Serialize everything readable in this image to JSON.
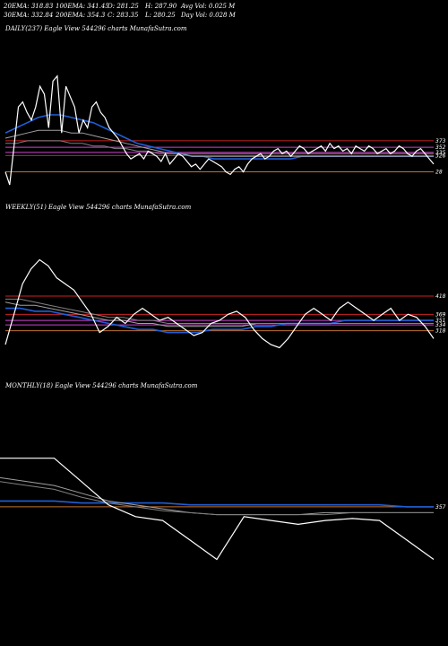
{
  "header": {
    "row1": [
      "20EMA: 318.83",
      "100EMA: 341.45",
      "O: 281.25",
      "H: 287.90",
      "Avg Vol: 0.025 M"
    ],
    "row2": [
      "30EMA: 332.84",
      "200EMA: 354.3",
      "C: 283.35",
      "L: 280.25",
      "Day Vol: 0.028 M"
    ]
  },
  "colors": {
    "background": "#000000",
    "price": "#ffffff",
    "ema_blue": "#1f5fd8",
    "level_red": "#cc2222",
    "level_magenta": "#d040d0",
    "level_orange": "#c07030",
    "ema_gray": "#a0a0a0"
  },
  "chart_data": [
    {
      "type": "line",
      "title": "DAILY(237) Eagle  View  544296  charts MunafaSutra.com",
      "price_series": [
        5,
        0,
        15,
        30,
        32,
        28,
        25,
        30,
        38,
        35,
        22,
        40,
        42,
        20,
        38,
        34,
        30,
        20,
        25,
        22,
        30,
        32,
        28,
        26,
        22,
        20,
        18,
        15,
        12,
        10,
        11,
        12,
        10,
        13,
        12,
        11,
        9,
        12,
        8,
        10,
        12,
        11,
        9,
        7,
        8,
        6,
        8,
        10,
        9,
        8,
        7,
        5,
        4,
        6,
        7,
        5,
        8,
        10,
        11,
        12,
        10,
        11,
        13,
        14,
        12,
        13,
        11,
        13,
        15,
        14,
        12,
        13,
        14,
        15,
        13,
        16,
        14,
        15,
        13,
        14,
        12,
        15,
        14,
        13,
        15,
        14,
        12,
        13,
        14,
        12,
        13,
        15,
        14,
        12,
        11,
        13,
        14,
        12,
        10,
        8
      ],
      "ema_series": [
        {
          "color": "#1f5fd8",
          "values": [
            20,
            22,
            24,
            26,
            27,
            27,
            26,
            25,
            24,
            22,
            20,
            18,
            16,
            15,
            14,
            13,
            12,
            11,
            11,
            10,
            10,
            10,
            10,
            10,
            10,
            10,
            10,
            11,
            11,
            11,
            11,
            11,
            11,
            11,
            11,
            11,
            11,
            11,
            11,
            11
          ]
        },
        {
          "color": "#a0a0a0",
          "values": [
            18,
            19,
            20,
            21,
            21,
            21,
            20,
            20,
            19,
            18,
            17,
            16,
            15,
            14,
            13,
            12,
            12,
            11,
            11,
            11,
            11,
            11,
            11,
            11,
            11,
            11,
            11,
            11,
            11,
            11,
            11,
            11,
            11,
            11,
            11,
            11,
            11,
            11,
            11,
            11
          ]
        },
        {
          "color": "#808080",
          "values": [
            16,
            16,
            17,
            17,
            17,
            17,
            16,
            16,
            15,
            15,
            14,
            14,
            13,
            13,
            12,
            12,
            12,
            12,
            12,
            12,
            12,
            12,
            12,
            12,
            12,
            12,
            12,
            12,
            12,
            12,
            12,
            12,
            12,
            12,
            12,
            12,
            12,
            12,
            12,
            12
          ]
        }
      ],
      "levels": [
        {
          "label": "373",
          "value": 17,
          "color": "#cc2222"
        },
        {
          "label": "352",
          "value": 14.5,
          "color": "#d040d0"
        },
        {
          "label": "335",
          "value": 12.5,
          "color": "#d040d0"
        },
        {
          "label": "326",
          "value": 11.3,
          "color": "#cc2222"
        },
        {
          "label": "28",
          "value": 5,
          "color": "#c07030"
        }
      ],
      "ylim": [
        0,
        45
      ]
    },
    {
      "type": "line",
      "title": "WEEKLY(51) Eagle  View  544296  charts MunafaSutra.com",
      "price_series": [
        0,
        10,
        20,
        25,
        28,
        26,
        22,
        20,
        18,
        14,
        10,
        4,
        6,
        9,
        7,
        10,
        12,
        10,
        8,
        9,
        7,
        5,
        3,
        4,
        7,
        8,
        10,
        11,
        9,
        5,
        2,
        0,
        -1,
        2,
        6,
        10,
        12,
        10,
        8,
        12,
        14,
        12,
        10,
        8,
        10,
        12,
        8,
        10,
        9,
        6,
        2
      ],
      "ema_series": [
        {
          "color": "#1f5fd8",
          "values": [
            12,
            12,
            11,
            11,
            10,
            9,
            8,
            7,
            6,
            5,
            5,
            4,
            4,
            4,
            5,
            5,
            5,
            6,
            6,
            7,
            7,
            7,
            7,
            8,
            8,
            8,
            8,
            8,
            8,
            8
          ]
        },
        {
          "color": "#a0a0a0",
          "values": [
            14,
            13,
            13,
            12,
            11,
            10,
            9,
            8,
            8,
            7,
            7,
            6,
            6,
            6,
            6,
            6,
            6,
            7,
            7,
            7,
            7,
            7,
            7,
            7,
            7,
            7,
            7,
            7,
            7,
            7
          ]
        },
        {
          "color": "#808080",
          "values": [
            15,
            15,
            14,
            13,
            12,
            11,
            10,
            9,
            9,
            8,
            8,
            7,
            7,
            7,
            7,
            7,
            7,
            7,
            7,
            7,
            7,
            7,
            7,
            7,
            7,
            7,
            7,
            7,
            7,
            7
          ]
        }
      ],
      "levels": [
        {
          "label": "418",
          "value": 16,
          "color": "#cc2222"
        },
        {
          "label": "369",
          "value": 10,
          "color": "#cc2222"
        },
        {
          "label": "351",
          "value": 8,
          "color": "#d040d0"
        },
        {
          "label": "334",
          "value": 6.5,
          "color": "#d040d0"
        },
        {
          "label": "318",
          "value": 4.6,
          "color": "#c07030"
        }
      ],
      "ylim": [
        -5,
        32
      ]
    },
    {
      "type": "line",
      "title": "MONTHLY(18) Eagle  View  544296  charts MunafaSutra.com",
      "price_series": [
        22,
        22,
        22,
        10,
        -2,
        -8,
        -10,
        -20,
        -30,
        -8,
        -10,
        -12,
        -10,
        -9,
        -10,
        -20,
        -30
      ],
      "ema_series": [
        {
          "color": "#1f5fd8",
          "values": [
            0,
            0,
            0,
            -1,
            -1,
            -1,
            -1,
            -2,
            -2,
            -2,
            -2,
            -2,
            -2,
            -2,
            -2,
            -3,
            -3
          ]
        },
        {
          "color": "#a0a0a0",
          "values": [
            12,
            10,
            8,
            4,
            0,
            -2,
            -4,
            -6,
            -7,
            -7,
            -7,
            -7,
            -6,
            -6,
            -6,
            -6,
            -6
          ]
        },
        {
          "color": "#808080",
          "values": [
            10,
            8,
            6,
            2,
            -1,
            -3,
            -5,
            -6,
            -7,
            -7,
            -7,
            -7,
            -7,
            -6,
            -6,
            -6,
            -6
          ]
        }
      ],
      "levels": [
        {
          "label": "357",
          "value": -3,
          "color": "#c07030"
        }
      ],
      "ylim": [
        -45,
        38
      ]
    }
  ]
}
